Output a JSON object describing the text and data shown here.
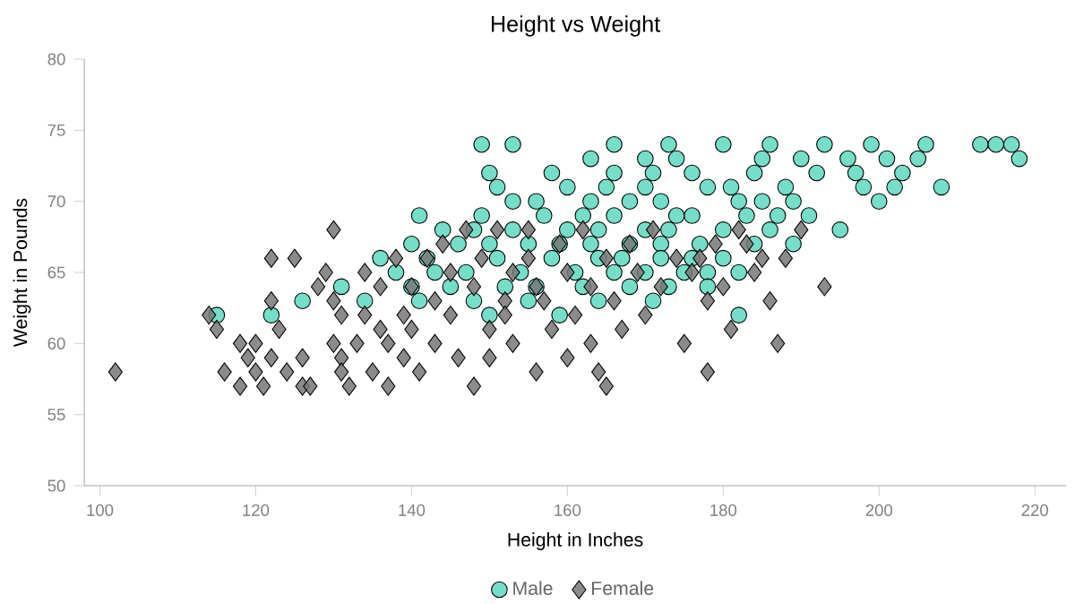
{
  "chart_data": {
    "type": "scatter",
    "title": "Height vs Weight",
    "xlabel": "Height in Inches",
    "ylabel": "Weight in Pounds",
    "xlim": [
      98,
      224
    ],
    "xticks": [
      100,
      120,
      140,
      160,
      180,
      200,
      220
    ],
    "ylim": [
      50,
      80
    ],
    "yticks": [
      50,
      55,
      60,
      65,
      70,
      75,
      80
    ],
    "legend": "bottom",
    "grid": false,
    "series": [
      {
        "name": "Male",
        "color": "#5dd8c0",
        "marker": "circle",
        "x": [
          149,
          153,
          166,
          173,
          180,
          186,
          193,
          199,
          206,
          213,
          215,
          217,
          163,
          170,
          174,
          185,
          190,
          196,
          201,
          205,
          218,
          150,
          158,
          166,
          171,
          176,
          184,
          192,
          197,
          203,
          151,
          160,
          165,
          170,
          178,
          181,
          188,
          198,
          202,
          208,
          153,
          156,
          163,
          168,
          172,
          182,
          185,
          189,
          200,
          141,
          149,
          157,
          162,
          166,
          174,
          176,
          183,
          187,
          191,
          144,
          148,
          153,
          160,
          164,
          170,
          173,
          180,
          186,
          195,
          140,
          146,
          150,
          155,
          159,
          163,
          168,
          172,
          177,
          184,
          189,
          136,
          142,
          151,
          158,
          164,
          167,
          172,
          176,
          180,
          138,
          143,
          147,
          154,
          161,
          166,
          170,
          175,
          178,
          182,
          131,
          140,
          145,
          152,
          156,
          162,
          168,
          173,
          178,
          126,
          134,
          141,
          148,
          155,
          164,
          171,
          115,
          122,
          150,
          159,
          182
        ],
        "values": [
          74,
          74,
          74,
          74,
          74,
          74,
          74,
          74,
          74,
          74,
          74,
          74,
          73,
          73,
          73,
          73,
          73,
          73,
          73,
          73,
          73,
          72,
          72,
          72,
          72,
          72,
          72,
          72,
          72,
          72,
          71,
          71,
          71,
          71,
          71,
          71,
          71,
          71,
          71,
          71,
          70,
          70,
          70,
          70,
          70,
          70,
          70,
          70,
          70,
          69,
          69,
          69,
          69,
          69,
          69,
          69,
          69,
          69,
          69,
          68,
          68,
          68,
          68,
          68,
          68,
          68,
          68,
          68,
          68,
          67,
          67,
          67,
          67,
          67,
          67,
          67,
          67,
          67,
          67,
          67,
          66,
          66,
          66,
          66,
          66,
          66,
          66,
          66,
          66,
          65,
          65,
          65,
          65,
          65,
          65,
          65,
          65,
          65,
          65,
          64,
          64,
          64,
          64,
          64,
          64,
          64,
          64,
          64,
          63,
          63,
          63,
          63,
          63,
          63,
          63,
          62,
          62,
          62,
          62,
          62
        ]
      },
      {
        "name": "Female",
        "color": "#777777",
        "marker": "diamond",
        "x": [
          102,
          114,
          115,
          116,
          118,
          118,
          119,
          120,
          120,
          121,
          122,
          122,
          122,
          123,
          124,
          125,
          126,
          126,
          127,
          128,
          129,
          130,
          130,
          130,
          131,
          131,
          131,
          132,
          133,
          134,
          134,
          135,
          136,
          136,
          137,
          137,
          138,
          139,
          139,
          140,
          140,
          141,
          142,
          143,
          143,
          144,
          145,
          145,
          146,
          147,
          148,
          148,
          149,
          150,
          150,
          151,
          152,
          152,
          153,
          153,
          155,
          155,
          156,
          156,
          157,
          158,
          159,
          160,
          160,
          161,
          162,
          163,
          163,
          164,
          165,
          165,
          166,
          167,
          168,
          169,
          170,
          171,
          172,
          174,
          175,
          176,
          177,
          178,
          178,
          179,
          180,
          181,
          182,
          183,
          184,
          185,
          186,
          187,
          188,
          190,
          193
        ],
        "values": [
          58,
          62,
          61,
          58,
          60,
          57,
          59,
          60,
          58,
          57,
          66,
          63,
          59,
          61,
          58,
          66,
          57,
          59,
          57,
          64,
          65,
          68,
          63,
          60,
          62,
          59,
          58,
          57,
          60,
          65,
          62,
          58,
          64,
          61,
          60,
          57,
          66,
          62,
          59,
          64,
          61,
          58,
          66,
          63,
          60,
          67,
          65,
          62,
          59,
          68,
          64,
          57,
          66,
          61,
          59,
          68,
          63,
          62,
          65,
          60,
          68,
          66,
          64,
          58,
          63,
          61,
          67,
          65,
          59,
          62,
          68,
          64,
          60,
          58,
          66,
          57,
          63,
          61,
          67,
          65,
          62,
          68,
          64,
          66,
          60,
          65,
          66,
          58,
          63,
          67,
          64,
          61,
          68,
          67,
          65,
          66,
          63,
          60,
          66,
          68,
          64
        ]
      }
    ]
  }
}
